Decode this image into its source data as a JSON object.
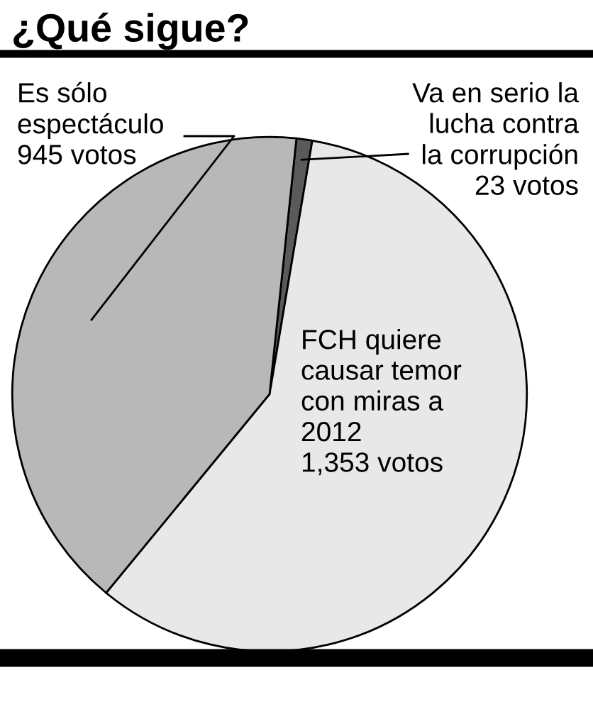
{
  "chart_data": {
    "type": "pie",
    "title": "¿Qué sigue?",
    "categories": [
      "Va en serio la\nlucha contra\nla corrupción",
      "FCH quiere\ncausar temor\ncon miras a\n2012",
      "Es sólo\nespectáculo"
    ],
    "values": [
      23,
      1353,
      945
    ],
    "value_labels": [
      "23 votos",
      "1,353 votos",
      "945 votos"
    ],
    "colors": [
      "#5a5a5a",
      "#e8e8e8",
      "#b8b8b8"
    ]
  }
}
